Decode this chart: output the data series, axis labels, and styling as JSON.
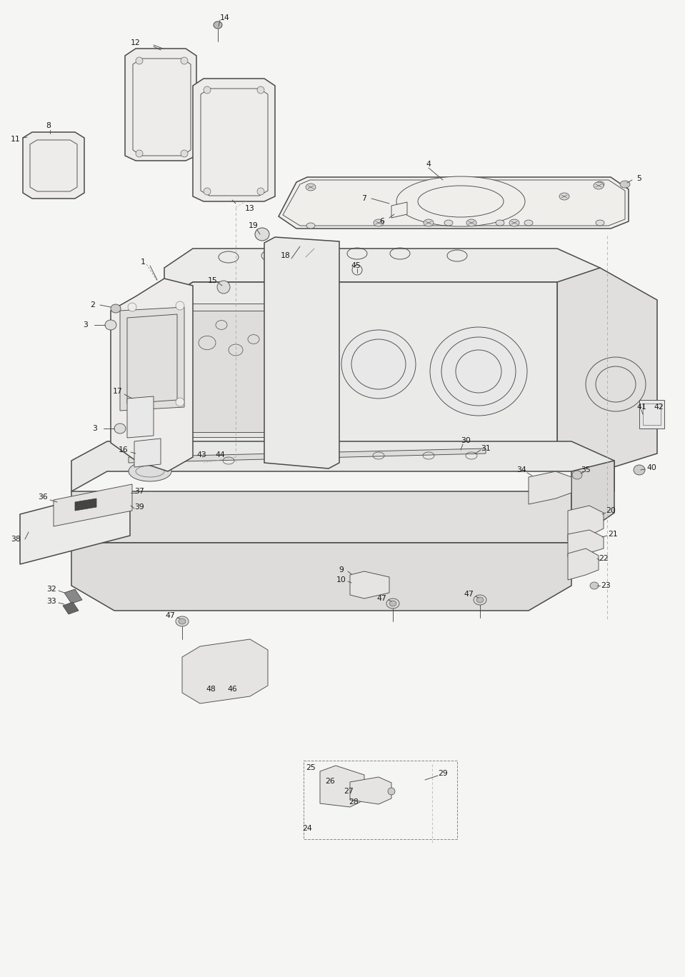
{
  "bg_color": "#f5f5f3",
  "line_color": "#4a4a4a",
  "label_color": "#1a1a1a",
  "lw_main": 1.1,
  "lw_thin": 0.65,
  "lw_dash": 0.7,
  "label_fs": 7.8
}
